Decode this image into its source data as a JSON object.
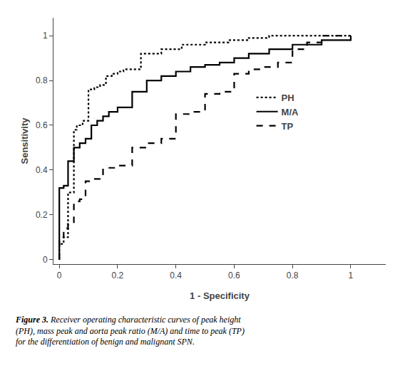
{
  "chart_data": {
    "type": "line",
    "xlabel": "1 - Specificity",
    "ylabel": "Sensitivity",
    "xlim": [
      -0.02,
      1.12
    ],
    "ylim": [
      -0.02,
      1.08
    ],
    "xticks": [
      0.0,
      0.2,
      0.4,
      0.6,
      0.8,
      1.0
    ],
    "yticks": [
      0.0,
      0.2,
      0.4,
      0.6,
      0.8,
      1.0
    ],
    "grid": false,
    "legend": "center right",
    "annotations": [
      "Figure 3.",
      "Receiver operating characteristic curves of peak height\n(PH), mass peak and aorta peak ratio (M/A) and time to peak (TP)\nfor the differentiation of benign and malignant SPN."
    ],
    "series": [
      {
        "name": "PH",
        "color": "#000000",
        "line_style": "dot",
        "x": [
          0.0,
          0.0,
          0.015,
          0.015,
          0.03,
          0.03,
          0.05,
          0.05,
          0.06,
          0.06,
          0.08,
          0.08,
          0.1,
          0.1,
          0.12,
          0.12,
          0.14,
          0.14,
          0.16,
          0.16,
          0.18,
          0.18,
          0.2,
          0.2,
          0.22,
          0.22,
          0.28,
          0.28,
          0.35,
          0.35,
          0.42,
          0.42,
          0.5,
          0.5,
          0.58,
          0.58,
          0.65,
          0.65,
          0.72,
          0.72,
          0.8,
          0.8,
          0.88,
          0.88,
          0.95,
          0.95,
          1.0,
          1.0
        ],
        "values": [
          0.0,
          0.07,
          0.07,
          0.1,
          0.1,
          0.3,
          0.3,
          0.58,
          0.58,
          0.6,
          0.6,
          0.62,
          0.62,
          0.76,
          0.76,
          0.77,
          0.77,
          0.78,
          0.78,
          0.82,
          0.82,
          0.83,
          0.83,
          0.84,
          0.84,
          0.85,
          0.85,
          0.92,
          0.92,
          0.94,
          0.94,
          0.96,
          0.96,
          0.97,
          0.97,
          0.98,
          0.98,
          0.99,
          0.99,
          1.0,
          1.0,
          1.0,
          1.0,
          1.0,
          1.0,
          1.0,
          1.0,
          1.0
        ]
      },
      {
        "name": "M/A",
        "color": "#000000",
        "line_style": "solid",
        "x": [
          0.0,
          0.0,
          0.015,
          0.015,
          0.03,
          0.03,
          0.05,
          0.05,
          0.07,
          0.07,
          0.09,
          0.09,
          0.11,
          0.11,
          0.13,
          0.13,
          0.15,
          0.15,
          0.17,
          0.17,
          0.2,
          0.2,
          0.25,
          0.25,
          0.3,
          0.3,
          0.35,
          0.35,
          0.4,
          0.4,
          0.45,
          0.45,
          0.5,
          0.5,
          0.55,
          0.55,
          0.6,
          0.6,
          0.65,
          0.65,
          0.72,
          0.72,
          0.8,
          0.8,
          0.9,
          0.9,
          1.0,
          1.0
        ],
        "values": [
          0.0,
          0.32,
          0.32,
          0.33,
          0.33,
          0.44,
          0.44,
          0.5,
          0.5,
          0.52,
          0.52,
          0.54,
          0.54,
          0.6,
          0.6,
          0.62,
          0.62,
          0.64,
          0.64,
          0.66,
          0.66,
          0.68,
          0.68,
          0.75,
          0.75,
          0.8,
          0.8,
          0.82,
          0.82,
          0.84,
          0.84,
          0.86,
          0.86,
          0.87,
          0.87,
          0.88,
          0.88,
          0.9,
          0.9,
          0.92,
          0.92,
          0.94,
          0.94,
          0.96,
          0.96,
          0.98,
          0.98,
          1.0
        ]
      },
      {
        "name": "TP",
        "color": "#000000",
        "line_style": "dash",
        "x": [
          0.0,
          0.0,
          0.015,
          0.015,
          0.03,
          0.03,
          0.05,
          0.05,
          0.07,
          0.07,
          0.09,
          0.09,
          0.11,
          0.11,
          0.15,
          0.15,
          0.2,
          0.2,
          0.25,
          0.25,
          0.3,
          0.3,
          0.35,
          0.35,
          0.4,
          0.4,
          0.45,
          0.45,
          0.5,
          0.5,
          0.55,
          0.55,
          0.6,
          0.6,
          0.65,
          0.65,
          0.7,
          0.7,
          0.75,
          0.75,
          0.8,
          0.8,
          0.85,
          0.85,
          0.9,
          0.9,
          1.0,
          1.0
        ],
        "values": [
          0.0,
          0.1,
          0.1,
          0.14,
          0.14,
          0.16,
          0.16,
          0.26,
          0.26,
          0.27,
          0.27,
          0.35,
          0.35,
          0.36,
          0.36,
          0.41,
          0.41,
          0.42,
          0.42,
          0.5,
          0.5,
          0.52,
          0.52,
          0.54,
          0.54,
          0.65,
          0.65,
          0.66,
          0.66,
          0.74,
          0.74,
          0.75,
          0.75,
          0.83,
          0.83,
          0.85,
          0.85,
          0.86,
          0.86,
          0.88,
          0.88,
          0.94,
          0.94,
          0.97,
          0.97,
          1.0,
          1.0,
          1.0
        ]
      }
    ]
  }
}
